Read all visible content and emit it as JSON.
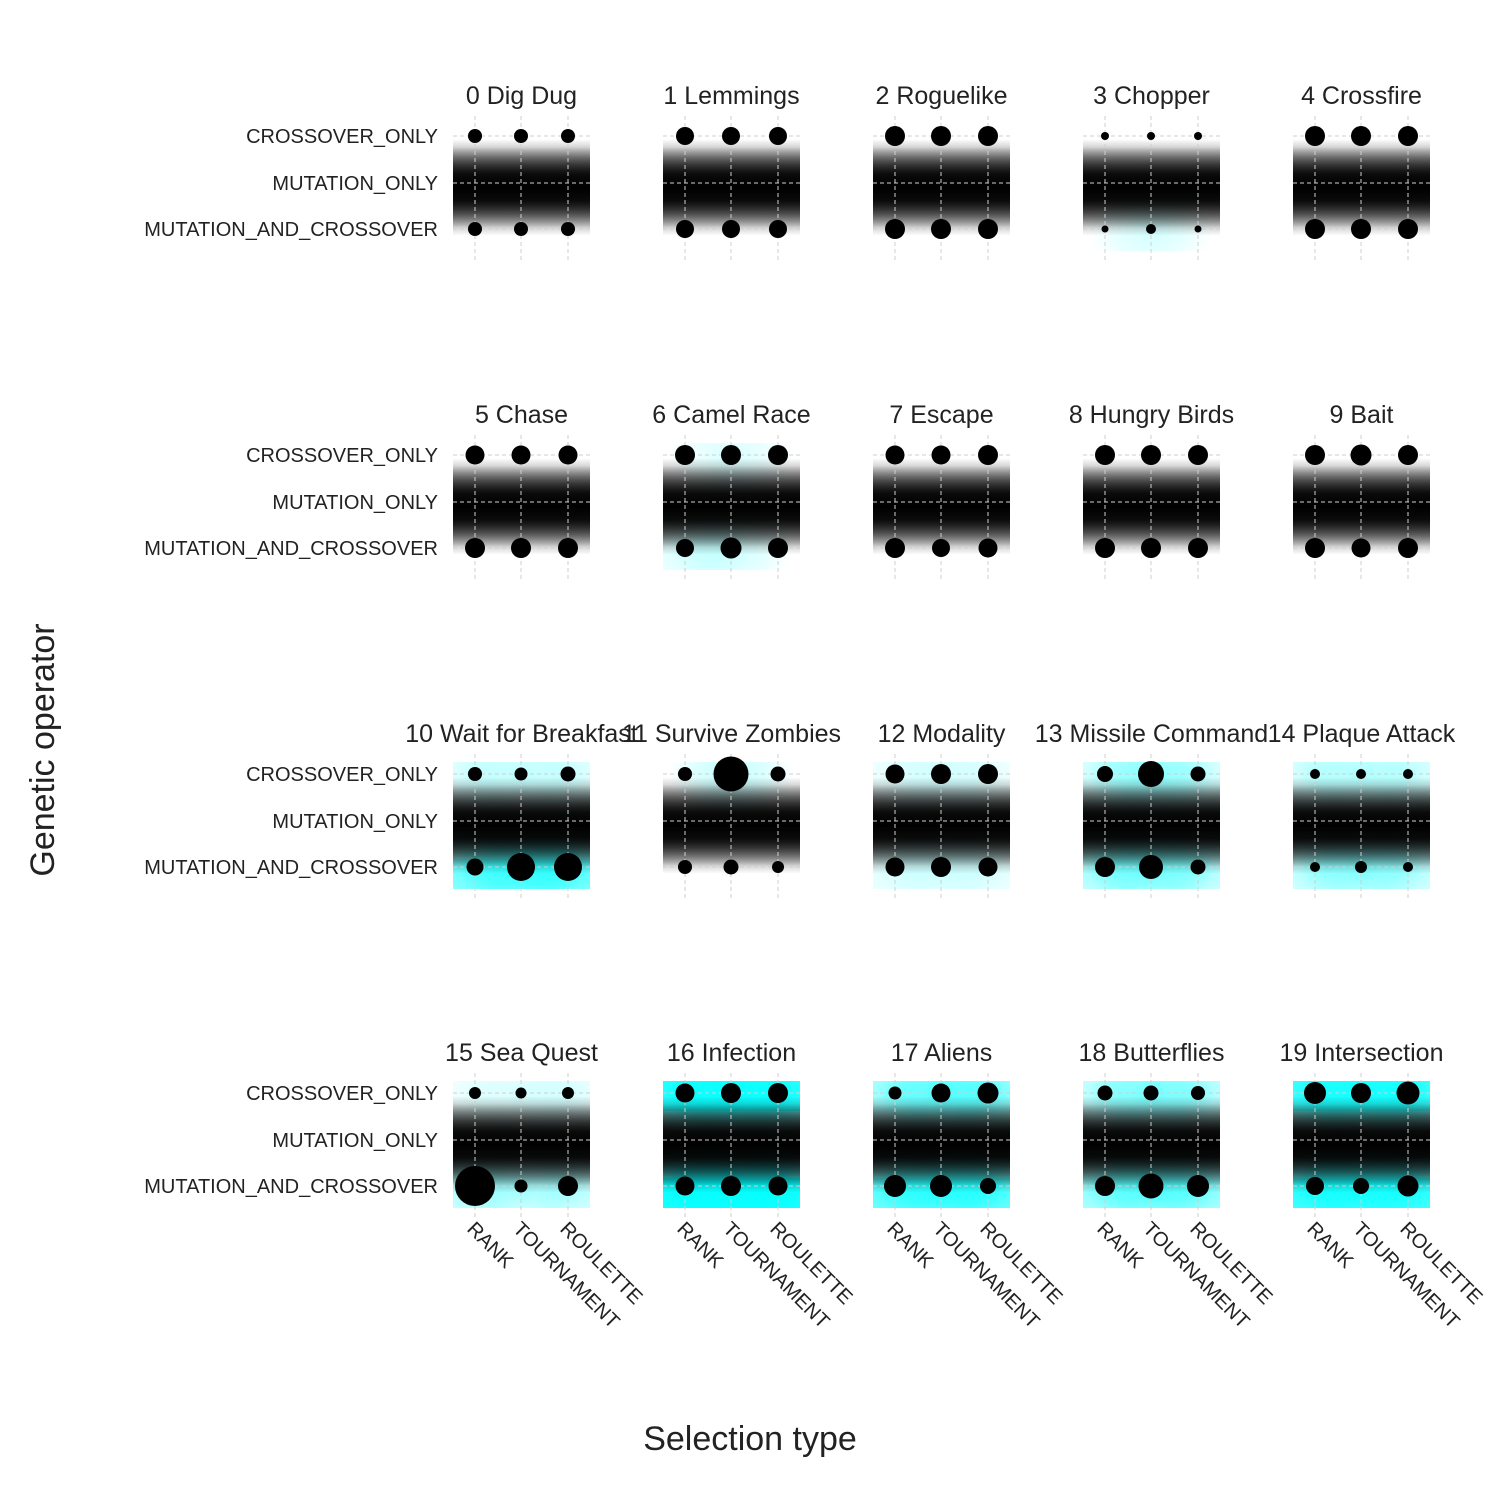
{
  "chart_data": {
    "type": "scatter",
    "xlabel": "Selection type",
    "ylabel": "Genetic operator",
    "x_categories": [
      "RANK",
      "TOURNAMENT",
      "ROULETTE"
    ],
    "y_categories": [
      "CROSSOVER_ONLY",
      "MUTATION_ONLY",
      "MUTATION_AND_CROSSOVER"
    ],
    "grid": true,
    "colors": {
      "point": "#000000",
      "high": "#00ffff",
      "dark": "#000000",
      "grid": "#cfcfcf"
    },
    "facets": [
      {
        "title": "0 Dig Dug",
        "sizes": [
          [
            7,
            7,
            7
          ],
          [
            0,
            0,
            0
          ],
          [
            7,
            7,
            7
          ]
        ],
        "glow": [
          [
            0,
            0,
            0
          ],
          [
            0,
            0,
            0
          ]
        ]
      },
      {
        "title": "1 Lemmings",
        "sizes": [
          [
            9,
            9,
            9
          ],
          [
            0,
            0,
            0
          ],
          [
            9,
            9,
            9
          ]
        ],
        "glow": [
          [
            0,
            0,
            0
          ],
          [
            0,
            0,
            0
          ]
        ]
      },
      {
        "title": "2 Roguelike",
        "sizes": [
          [
            10,
            10,
            10
          ],
          [
            0,
            0,
            0
          ],
          [
            10,
            10,
            10
          ]
        ],
        "glow": [
          [
            0,
            0,
            0
          ],
          [
            0,
            0,
            0
          ]
        ]
      },
      {
        "title": "3 Chopper",
        "sizes": [
          [
            4,
            4,
            4
          ],
          [
            0,
            0,
            0
          ],
          [
            3.5,
            5,
            3.5
          ]
        ],
        "glow": [
          [
            0,
            0,
            0
          ],
          [
            0,
            0.18,
            0
          ]
        ]
      },
      {
        "title": "4 Crossfire",
        "sizes": [
          [
            10,
            10,
            10
          ],
          [
            0,
            0,
            0
          ],
          [
            10,
            10,
            10
          ]
        ],
        "glow": [
          [
            0,
            0,
            0
          ],
          [
            0,
            0,
            0
          ]
        ]
      },
      {
        "title": "5 Chase",
        "sizes": [
          [
            9.5,
            9.5,
            9.5
          ],
          [
            0,
            0,
            0
          ],
          [
            10,
            10,
            10
          ]
        ],
        "glow": [
          [
            0,
            0,
            0
          ],
          [
            0,
            0,
            0
          ]
        ]
      },
      {
        "title": "6 Camel Race",
        "sizes": [
          [
            10,
            10,
            10
          ],
          [
            0,
            0,
            0
          ],
          [
            9,
            10.5,
            10
          ]
        ],
        "glow": [
          [
            0,
            0.15,
            0
          ],
          [
            0.15,
            0.2,
            0
          ]
        ]
      },
      {
        "title": "7 Escape",
        "sizes": [
          [
            9.5,
            9.5,
            10
          ],
          [
            0,
            0,
            0
          ],
          [
            10,
            9,
            9.5
          ]
        ],
        "glow": [
          [
            0,
            0,
            0
          ],
          [
            0,
            0,
            0
          ]
        ]
      },
      {
        "title": "8 Hungry Birds",
        "sizes": [
          [
            10,
            10,
            10
          ],
          [
            0,
            0,
            0
          ],
          [
            10,
            10,
            10
          ]
        ],
        "glow": [
          [
            0,
            0,
            0
          ],
          [
            0,
            0,
            0
          ]
        ]
      },
      {
        "title": "9 Bait",
        "sizes": [
          [
            10,
            10.5,
            10
          ],
          [
            0,
            0,
            0
          ],
          [
            10,
            9.5,
            10
          ]
        ],
        "glow": [
          [
            0,
            0,
            0
          ],
          [
            0,
            0,
            0
          ]
        ]
      },
      {
        "title": "10 Wait for Breakfast",
        "sizes": [
          [
            7,
            6.5,
            7.5
          ],
          [
            0,
            0,
            0
          ],
          [
            8.5,
            14,
            14
          ]
        ],
        "glow": [
          [
            0.2,
            0.15,
            0.2
          ],
          [
            0.55,
            0.7,
            0.7
          ]
        ]
      },
      {
        "title": "11 Survive Zombies",
        "sizes": [
          [
            7,
            17.5,
            7.5
          ],
          [
            0,
            0,
            0
          ],
          [
            7,
            7.5,
            6
          ]
        ],
        "glow": [
          [
            0,
            0.25,
            0
          ],
          [
            0,
            0,
            0
          ]
        ]
      },
      {
        "title": "12 Modality",
        "sizes": [
          [
            9.5,
            10,
            10
          ],
          [
            0,
            0,
            0
          ],
          [
            9.5,
            10,
            9.5
          ]
        ],
        "glow": [
          [
            0.1,
            0.15,
            0.1
          ],
          [
            0.15,
            0.15,
            0.15
          ]
        ]
      },
      {
        "title": "13 Missile Command",
        "sizes": [
          [
            8,
            13,
            7.5
          ],
          [
            0,
            0,
            0
          ],
          [
            10,
            12,
            7.5
          ]
        ],
        "glow": [
          [
            0.25,
            0.4,
            0.25
          ],
          [
            0.45,
            0.5,
            0.4
          ]
        ]
      },
      {
        "title": "14 Plaque Attack",
        "sizes": [
          [
            5,
            5,
            5
          ],
          [
            0,
            0,
            0
          ],
          [
            5,
            6,
            5
          ]
        ],
        "glow": [
          [
            0.25,
            0.2,
            0.25
          ],
          [
            0.35,
            0.4,
            0.35
          ]
        ]
      },
      {
        "title": "15 Sea Quest",
        "sizes": [
          [
            6,
            5.5,
            6
          ],
          [
            0,
            0,
            0
          ],
          [
            20,
            6.5,
            10
          ]
        ],
        "glow": [
          [
            0.1,
            0.1,
            0.15
          ],
          [
            0.4,
            0.2,
            0.35
          ]
        ]
      },
      {
        "title": "16 Infection",
        "sizes": [
          [
            9.5,
            10,
            10
          ],
          [
            0,
            0,
            0
          ],
          [
            9.5,
            10,
            9.5
          ]
        ],
        "glow": [
          [
            0.9,
            0.9,
            0.9
          ],
          [
            1,
            1,
            1
          ]
        ]
      },
      {
        "title": "17 Aliens",
        "sizes": [
          [
            6.5,
            9.5,
            10.5
          ],
          [
            0,
            0,
            0
          ],
          [
            11,
            11,
            8
          ]
        ],
        "glow": [
          [
            0.45,
            0.55,
            0.6
          ],
          [
            0.65,
            0.75,
            0.75
          ]
        ]
      },
      {
        "title": "18 Butterflies",
        "sizes": [
          [
            7.5,
            7.5,
            7
          ],
          [
            0,
            0,
            0
          ],
          [
            10,
            12.5,
            11
          ]
        ],
        "glow": [
          [
            0.35,
            0.45,
            0.4
          ],
          [
            0.5,
            0.6,
            0.55
          ]
        ]
      },
      {
        "title": "19 Intersection",
        "sizes": [
          [
            11,
            10,
            11.5
          ],
          [
            0,
            0,
            0
          ],
          [
            9,
            8,
            10.5
          ]
        ],
        "glow": [
          [
            0.8,
            0.8,
            0.85
          ],
          [
            0.85,
            0.8,
            0.85
          ]
        ]
      }
    ]
  }
}
